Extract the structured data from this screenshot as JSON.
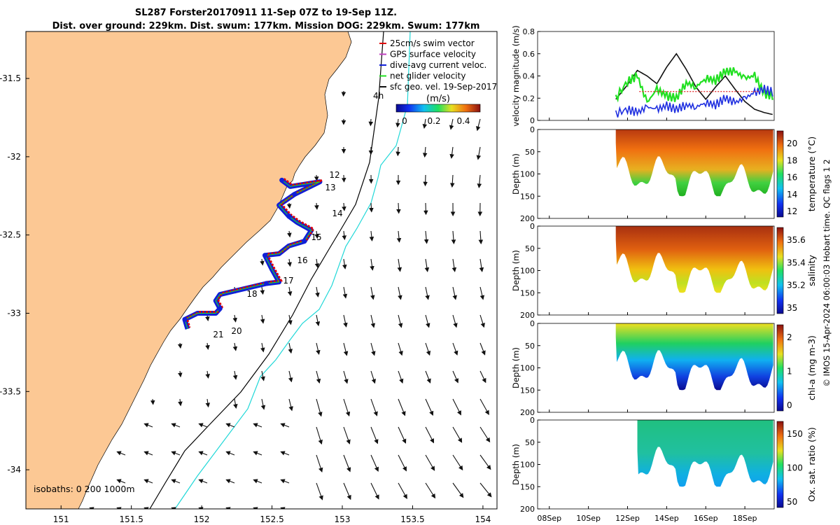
{
  "title": {
    "line1": "SL287 Forster20170911 11-Sep 07Z to 19-Sep 11Z.",
    "line2": "Dist. over ground: 229km. Dist. swum: 177km. Mission DOG: 229km. Swum: 177km"
  },
  "colors": {
    "land": "#fcc894",
    "track_red": "#e00000",
    "track_blue": "#1020d8",
    "net_green": "#22e022",
    "isobath_200": "#000000",
    "isobath_1000": "#20d8d8",
    "vel_black": "#111111",
    "vel_blue": "#2030e0",
    "vel_red": "#e02020"
  },
  "map": {
    "x_ticks": [
      "151",
      "151.5",
      "152",
      "152.5",
      "153",
      "153.5",
      "154"
    ],
    "y_ticks": [
      "-31.5",
      "-32",
      "-32.5",
      "-33",
      "-33.5",
      "-34"
    ],
    "legend": [
      "25cm/s swim vector",
      "GPS surface velocity",
      "dive-avg current veloc.",
      "net glider velocity",
      "sfc geo. vel. 19-Sep-2017"
    ],
    "colorbar": {
      "label": "(m/s)",
      "ticks": [
        "0",
        "0.2",
        "0.4"
      ],
      "corner_label": "4h"
    },
    "isobaths_text": "isobaths: 0   200  1000m",
    "day_labels": [
      "12",
      "13",
      "14",
      "15",
      "16",
      "17",
      "18",
      "20",
      "21"
    ],
    "track_lonlat": [
      [
        152.57,
        -32.15
      ],
      [
        152.63,
        -32.19
      ],
      [
        152.84,
        -32.16
      ],
      [
        152.66,
        -32.24
      ],
      [
        152.58,
        -32.29
      ],
      [
        152.55,
        -32.31
      ],
      [
        152.62,
        -32.38
      ],
      [
        152.68,
        -32.42
      ],
      [
        152.78,
        -32.47
      ],
      [
        152.73,
        -32.54
      ],
      [
        152.62,
        -32.57
      ],
      [
        152.55,
        -32.62
      ],
      [
        152.45,
        -32.63
      ],
      [
        152.5,
        -32.72
      ],
      [
        152.55,
        -32.8
      ],
      [
        152.46,
        -32.81
      ],
      [
        152.13,
        -32.88
      ],
      [
        152.1,
        -32.92
      ],
      [
        152.13,
        -32.97
      ],
      [
        152.1,
        -33.0
      ],
      [
        151.97,
        -33.0
      ],
      [
        151.88,
        -33.04
      ],
      [
        151.9,
        -33.1
      ]
    ]
  },
  "panels": [
    {
      "ylabel": "velocity magnitude (m/s)",
      "yticks": [
        "0",
        "0.2",
        "0.4",
        "0.6",
        "0.8"
      ]
    },
    {
      "ylabel": "Depth (m)",
      "yticks": [
        "0",
        "50",
        "100",
        "150",
        "200"
      ],
      "cbar_label": "temperature (°C)",
      "cbar_ticks": [
        "12",
        "14",
        "16",
        "18",
        "20"
      ]
    },
    {
      "ylabel": "Depth (m)",
      "yticks": [
        "0",
        "50",
        "100",
        "150",
        "200"
      ],
      "cbar_label": "salinity",
      "cbar_ticks": [
        "35",
        "35.2",
        "35.4",
        "35.6"
      ]
    },
    {
      "ylabel": "Depth (m)",
      "yticks": [
        "0",
        "50",
        "100",
        "150",
        "200"
      ],
      "cbar_label": "chl-a (mg m-3)",
      "cbar_ticks": [
        "0",
        "1",
        "2"
      ]
    },
    {
      "ylabel": "Depth (m)",
      "yticks": [
        "0",
        "50",
        "100",
        "150",
        "200"
      ],
      "cbar_label": "Ox. sat. ratio (%)",
      "cbar_ticks": [
        "50",
        "100",
        "150"
      ]
    }
  ],
  "time_ticks": [
    "08Sep",
    "10Sep",
    "12Sep",
    "14Sep",
    "16Sep",
    "18Sep"
  ],
  "side_note": "© IMOS 15-Apr-2024 06:00:03 Hobart time. QC flags 1  2",
  "chart_data": [
    {
      "type": "scatter",
      "title": "SL287 Forster20170911 11-Sep 07Z to 19-Sep 11Z.",
      "xlim": [
        150.75,
        154.1
      ],
      "ylim": [
        -34.25,
        -31.2
      ],
      "series": [
        {
          "name": "dive-avg current veloc.",
          "values": [
            [
              152.57,
              -32.15
            ],
            [
              152.84,
              -32.16
            ],
            [
              152.55,
              -32.31
            ],
            [
              152.78,
              -32.47
            ],
            [
              152.45,
              -32.63
            ],
            [
              152.55,
              -32.8
            ],
            [
              152.13,
              -32.88
            ],
            [
              152.13,
              -32.97
            ],
            [
              151.88,
              -33.04
            ]
          ]
        }
      ]
    },
    {
      "type": "line",
      "ylabel": "velocity magnitude (m/s)",
      "ylim": [
        0,
        0.8
      ],
      "x": [
        "11.4",
        "12",
        "12.5",
        "13",
        "13.5",
        "14",
        "14.5",
        "15",
        "15.5",
        "16",
        "16.5",
        "17",
        "17.5",
        "18",
        "18.5",
        "19",
        "19.5"
      ],
      "series": [
        {
          "name": "black",
          "values": [
            0.19,
            0.32,
            0.45,
            0.4,
            0.33,
            0.48,
            0.6,
            0.46,
            0.3,
            0.19,
            0.3,
            0.4,
            0.28,
            0.17,
            0.1,
            0.07,
            0.05
          ]
        },
        {
          "name": "green",
          "values": [
            0.2,
            0.35,
            0.4,
            0.16,
            0.28,
            0.22,
            0.2,
            0.34,
            0.3,
            0.38,
            0.36,
            0.44,
            0.44,
            0.38,
            0.4,
            0.24,
            0.22
          ]
        },
        {
          "name": "blue",
          "values": [
            0.06,
            0.1,
            0.07,
            0.12,
            0.1,
            0.13,
            0.1,
            0.14,
            0.12,
            0.16,
            0.14,
            0.2,
            0.16,
            0.2,
            0.25,
            0.28,
            0.25
          ]
        }
      ]
    }
  ]
}
